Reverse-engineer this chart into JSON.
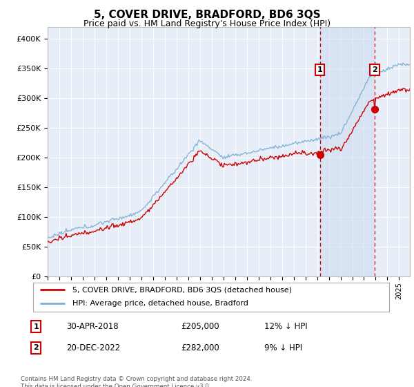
{
  "title": "5, COVER DRIVE, BRADFORD, BD6 3QS",
  "subtitle": "Price paid vs. HM Land Registry's House Price Index (HPI)",
  "title_fontsize": 11,
  "subtitle_fontsize": 9,
  "background_color": "#ffffff",
  "plot_bg_color": "#e8eef8",
  "grid_color": "#ffffff",
  "ylim": [
    0,
    420000
  ],
  "yticks": [
    0,
    50000,
    100000,
    150000,
    200000,
    250000,
    300000,
    350000,
    400000
  ],
  "ytick_labels": [
    "£0",
    "£50K",
    "£100K",
    "£150K",
    "£200K",
    "£250K",
    "£300K",
    "£350K",
    "£400K"
  ],
  "hpi_color": "#7bafd4",
  "price_color": "#cc0000",
  "marker1_price": 205000,
  "marker2_price": 282000,
  "legend_items": [
    {
      "label": "5, COVER DRIVE, BRADFORD, BD6 3QS (detached house)",
      "color": "#cc0000"
    },
    {
      "label": "HPI: Average price, detached house, Bradford",
      "color": "#7bafd4"
    }
  ],
  "annotation1": [
    "1",
    "30-APR-2018",
    "£205,000",
    "12% ↓ HPI"
  ],
  "annotation2": [
    "2",
    "20-DEC-2022",
    "£282,000",
    "9% ↓ HPI"
  ],
  "footer": "Contains HM Land Registry data © Crown copyright and database right 2024.\nThis data is licensed under the Open Government Licence v3.0.",
  "xstart_year": 1995,
  "xend_year": 2025,
  "shade_color": "#c8d8f0",
  "shade_alpha": 0.5
}
